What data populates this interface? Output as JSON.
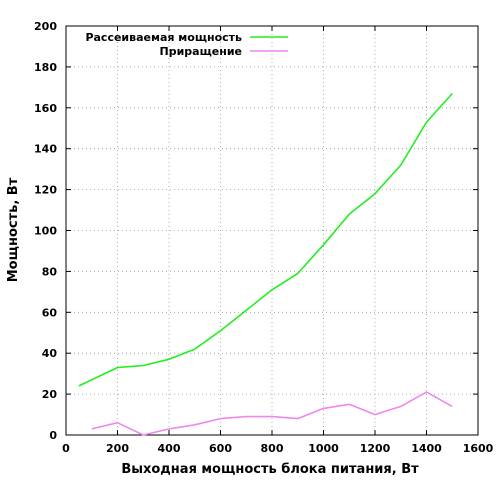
{
  "chart_data": {
    "type": "line",
    "xlabel": "Выходная мощность блока питания, Вт",
    "ylabel": "Мощность, Вт",
    "xlim": [
      0,
      1600
    ],
    "ylim": [
      0,
      200
    ],
    "xticks": [
      0,
      200,
      400,
      600,
      800,
      1000,
      1200,
      1400,
      1600
    ],
    "yticks": [
      0,
      20,
      40,
      60,
      80,
      100,
      120,
      140,
      160,
      180,
      200
    ],
    "grid": "dotted, both axes",
    "legend_position": "top-left",
    "series": [
      {
        "name": "Рассеиваемая мощность",
        "color": "#22ee22",
        "x": [
          50,
          200,
          300,
          400,
          500,
          600,
          700,
          800,
          900,
          1000,
          1100,
          1200,
          1300,
          1400,
          1500
        ],
        "y": [
          24,
          33,
          34,
          37,
          42,
          51,
          61,
          71,
          79,
          93,
          108,
          118,
          132,
          153,
          167
        ]
      },
      {
        "name": "Приращение",
        "color": "#ee88ee",
        "x": [
          100,
          200,
          300,
          400,
          500,
          600,
          700,
          800,
          900,
          1000,
          1100,
          1200,
          1300,
          1400,
          1500
        ],
        "y": [
          3,
          6,
          0,
          3,
          5,
          8,
          9,
          9,
          8,
          13,
          15,
          10,
          14,
          21,
          14
        ]
      }
    ]
  }
}
